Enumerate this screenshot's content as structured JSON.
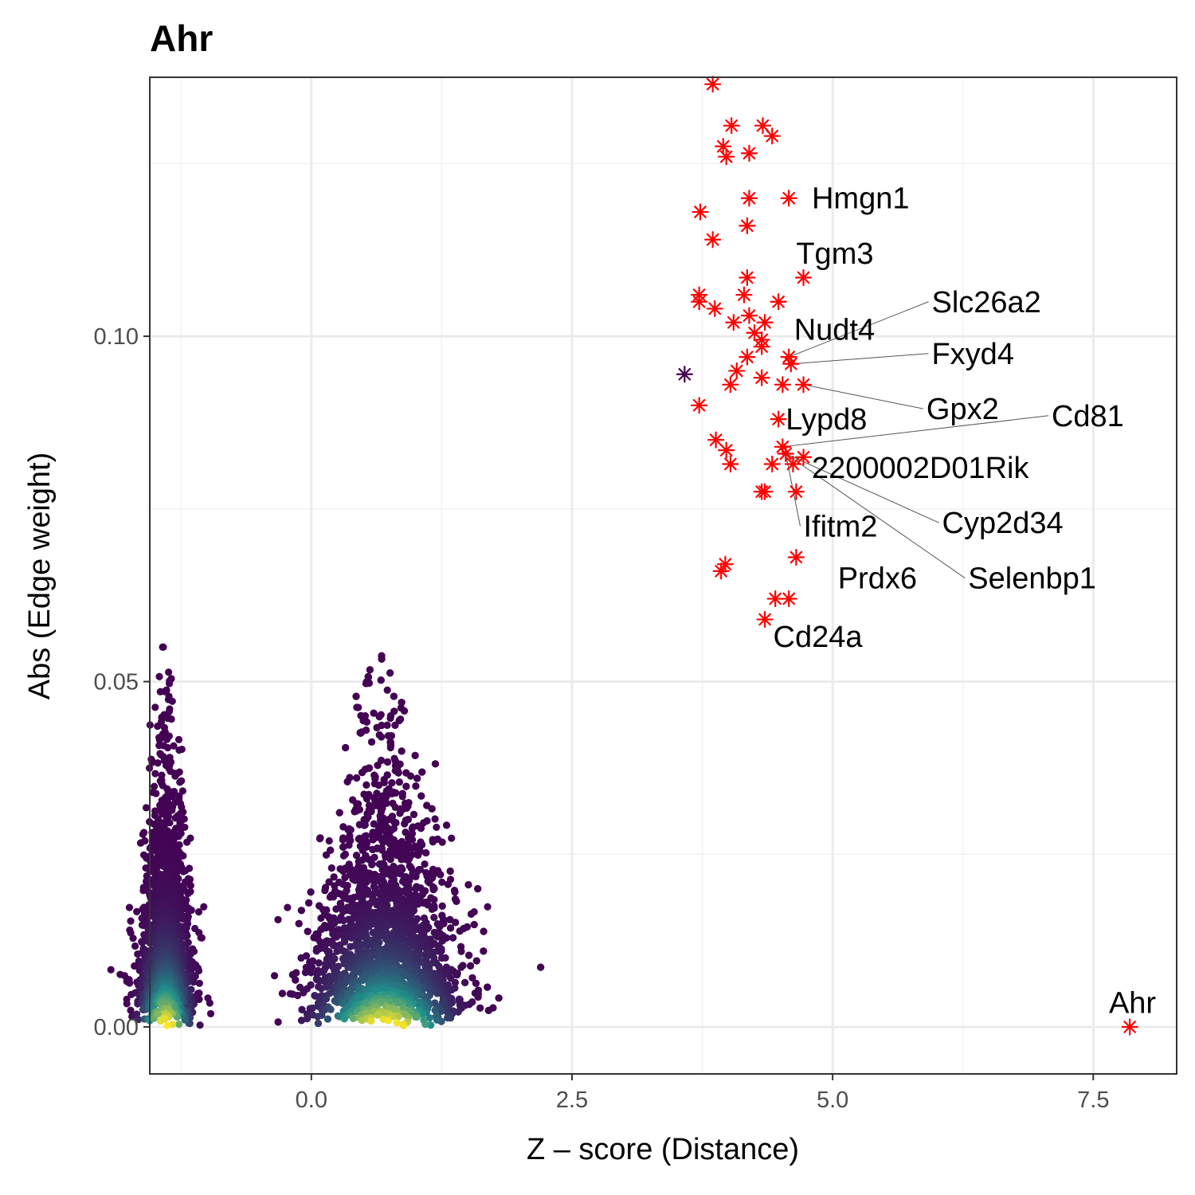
{
  "chart_data": {
    "type": "scatter",
    "title": "Ahr",
    "xlabel": "Z – score (Distance)",
    "ylabel": "Abs (Edge weight)",
    "xlim": [
      -1.55,
      8.3
    ],
    "ylim": [
      -0.0068,
      0.1375
    ],
    "x_ticks": [
      {
        "value": 0.0,
        "label": "0.0"
      },
      {
        "value": 2.5,
        "label": "2.5"
      },
      {
        "value": 5.0,
        "label": "5.0"
      },
      {
        "value": 7.5,
        "label": "7.5"
      }
    ],
    "y_ticks": [
      {
        "value": 0.0,
        "label": "0.00"
      },
      {
        "value": 0.05,
        "label": "0.05"
      },
      {
        "value": 0.1,
        "label": "0.10"
      }
    ],
    "grid": true,
    "colors": {
      "highlight": "#ff0000",
      "query_gene": "#440154",
      "leader_line": "#555555",
      "density_low": "#440154",
      "density_mid": "#21918c",
      "density_high": "#fde725"
    },
    "density_clusters": [
      {
        "x_center": -1.4,
        "x_sd": 0.13,
        "y_max": 0.055,
        "n": 1400
      },
      {
        "x_center": 0.7,
        "x_sd": 0.35,
        "y_max": 0.055,
        "n": 3200
      }
    ],
    "highlighted_genes": [
      {
        "x": 3.85,
        "y": 0.1365
      },
      {
        "x": 4.03,
        "y": 0.1305
      },
      {
        "x": 4.33,
        "y": 0.1305
      },
      {
        "x": 4.42,
        "y": 0.129
      },
      {
        "x": 3.95,
        "y": 0.1275
      },
      {
        "x": 3.98,
        "y": 0.126
      },
      {
        "x": 4.2,
        "y": 0.1265
      },
      {
        "x": 4.2,
        "y": 0.12
      },
      {
        "x": 4.58,
        "y": 0.12
      },
      {
        "x": 3.73,
        "y": 0.118
      },
      {
        "x": 4.18,
        "y": 0.116
      },
      {
        "x": 3.85,
        "y": 0.114
      },
      {
        "x": 4.72,
        "y": 0.1085
      },
      {
        "x": 4.18,
        "y": 0.1085
      },
      {
        "x": 3.72,
        "y": 0.106
      },
      {
        "x": 3.72,
        "y": 0.105
      },
      {
        "x": 4.15,
        "y": 0.106
      },
      {
        "x": 4.48,
        "y": 0.105
      },
      {
        "x": 3.87,
        "y": 0.104
      },
      {
        "x": 4.2,
        "y": 0.103
      },
      {
        "x": 4.05,
        "y": 0.102
      },
      {
        "x": 4.35,
        "y": 0.102
      },
      {
        "x": 4.25,
        "y": 0.1005
      },
      {
        "x": 4.32,
        "y": 0.0995
      },
      {
        "x": 4.32,
        "y": 0.0985
      },
      {
        "x": 4.18,
        "y": 0.097
      },
      {
        "x": 4.58,
        "y": 0.097
      },
      {
        "x": 4.6,
        "y": 0.096
      },
      {
        "x": 4.08,
        "y": 0.095
      },
      {
        "x": 4.32,
        "y": 0.094
      },
      {
        "x": 4.52,
        "y": 0.093
      },
      {
        "x": 4.72,
        "y": 0.093
      },
      {
        "x": 4.02,
        "y": 0.093
      },
      {
        "x": 3.72,
        "y": 0.09
      },
      {
        "x": 4.48,
        "y": 0.088
      },
      {
        "x": 3.88,
        "y": 0.085
      },
      {
        "x": 4.52,
        "y": 0.084
      },
      {
        "x": 3.98,
        "y": 0.0835
      },
      {
        "x": 4.55,
        "y": 0.083
      },
      {
        "x": 4.72,
        "y": 0.0825
      },
      {
        "x": 4.42,
        "y": 0.0815
      },
      {
        "x": 4.02,
        "y": 0.0815
      },
      {
        "x": 4.62,
        "y": 0.0815
      },
      {
        "x": 4.32,
        "y": 0.0775
      },
      {
        "x": 4.35,
        "y": 0.0775
      },
      {
        "x": 4.65,
        "y": 0.0775
      },
      {
        "x": 4.65,
        "y": 0.068
      },
      {
        "x": 3.97,
        "y": 0.067
      },
      {
        "x": 3.93,
        "y": 0.066
      },
      {
        "x": 4.45,
        "y": 0.062
      },
      {
        "x": 4.58,
        "y": 0.062
      },
      {
        "x": 4.35,
        "y": 0.059
      },
      {
        "x": 7.85,
        "y": 0.0
      }
    ],
    "query_point": {
      "x": 3.58,
      "y": 0.0945
    },
    "labels": [
      {
        "text": "Hmgn1",
        "x": 4.58,
        "y": 0.12,
        "lx": 4.8,
        "ly": 0.12
      },
      {
        "text": "Tgm3",
        "x": 4.72,
        "y": 0.1085,
        "lx": 4.65,
        "ly": 0.112
      },
      {
        "text": "Slc26a2",
        "x": 4.58,
        "y": 0.097,
        "lx": 5.95,
        "ly": 0.105
      },
      {
        "text": "Nudt4",
        "x": 4.6,
        "y": 0.096,
        "lx": 4.63,
        "ly": 0.101
      },
      {
        "text": "Fxyd4",
        "x": 4.6,
        "y": 0.096,
        "lx": 5.95,
        "ly": 0.0975
      },
      {
        "text": "Gpx2",
        "x": 4.72,
        "y": 0.093,
        "lx": 5.9,
        "ly": 0.0895
      },
      {
        "text": "Cd81",
        "x": 4.52,
        "y": 0.084,
        "lx": 7.1,
        "ly": 0.0885
      },
      {
        "text": "Lypd8",
        "x": 4.48,
        "y": 0.088,
        "lx": 4.55,
        "ly": 0.088
      },
      {
        "text": "2200002D01Rik",
        "x": 4.72,
        "y": 0.0825,
        "lx": 4.8,
        "ly": 0.081
      },
      {
        "text": "Cyp2d34",
        "x": 4.55,
        "y": 0.083,
        "lx": 6.05,
        "ly": 0.073
      },
      {
        "text": "Ifitm2",
        "x": 4.55,
        "y": 0.083,
        "lx": 4.72,
        "ly": 0.0725
      },
      {
        "text": "Selenbp1",
        "x": 4.55,
        "y": 0.083,
        "lx": 6.3,
        "ly": 0.065
      },
      {
        "text": "Prdx6",
        "x": 4.65,
        "y": 0.068,
        "lx": 5.05,
        "ly": 0.065
      },
      {
        "text": "Cd24a",
        "x": 4.35,
        "y": 0.059,
        "lx": 4.43,
        "ly": 0.0565
      },
      {
        "text": "Ahr",
        "x": 7.85,
        "y": 0.0,
        "lx": 7.65,
        "ly": 0.0035
      }
    ]
  }
}
